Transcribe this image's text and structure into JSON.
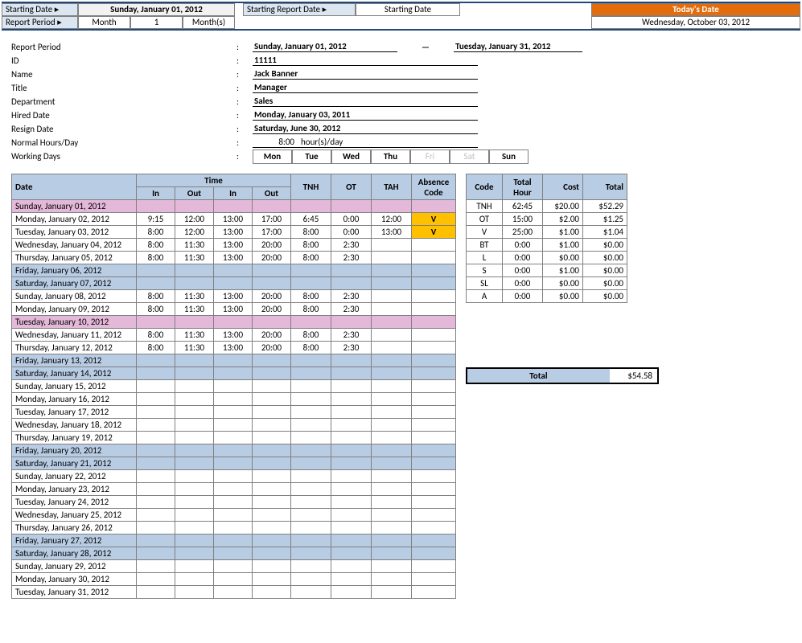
{
  "top": {
    "starting_date_label": "Starting Date ▸",
    "starting_date": "Sunday, January 01, 2012",
    "report_period_label": "Report Period ▸",
    "period_type": "Month",
    "period_count": "1",
    "period_unit": "Month(s)",
    "starting_report_label": "Starting Report Date ▸",
    "starting_report_val": "Starting Date",
    "today_label": "Today's Date",
    "today_value": "Wednesday, October 03, 2012"
  },
  "info": {
    "report_period_label": "Report Period",
    "report_period_from": "Sunday, January 01, 2012",
    "report_period_to": "Tuesday, January 31, 2012",
    "id_label": "ID",
    "id_value": "11111",
    "name_label": "Name",
    "name_value": "Jack Banner",
    "title_label": "Title",
    "title_value": "Manager",
    "dept_label": "Department",
    "dept_value": "Sales",
    "hired_label": "Hired Date",
    "hired_value": "Monday, January 03, 2011",
    "resign_label": "Resign Date",
    "resign_value": "Saturday, June 30, 2012",
    "normal_hours_label": "Normal Hours/Day",
    "normal_hours_value": "8:00",
    "normal_hours_unit": "hour(s)/day",
    "working_days_label": "Working Days",
    "days": [
      {
        "label": "Mon",
        "on": true
      },
      {
        "label": "Tue",
        "on": true
      },
      {
        "label": "Wed",
        "on": true
      },
      {
        "label": "Thu",
        "on": true
      },
      {
        "label": "Fri",
        "on": false
      },
      {
        "label": "Sat",
        "on": false
      },
      {
        "label": "Sun",
        "on": true
      }
    ]
  },
  "timesheet": {
    "headers": {
      "date": "Date",
      "time": "Time",
      "in": "In",
      "out": "Out",
      "tnh": "TNH",
      "ot": "OT",
      "tah": "TAH",
      "absence": "Absence Code"
    },
    "rows": [
      {
        "date": "Sunday, January 01, 2012",
        "type": "holiday"
      },
      {
        "date": "Monday, January 02, 2012",
        "in1": "9:15",
        "out1": "12:00",
        "in2": "13:00",
        "out2": "17:00",
        "tnh": "6:45",
        "ot": "0:00",
        "tah": "12:00",
        "abs": "V"
      },
      {
        "date": "Tuesday, January 03, 2012",
        "in1": "8:00",
        "out1": "12:00",
        "in2": "13:00",
        "out2": "17:00",
        "tnh": "8:00",
        "ot": "0:00",
        "tah": "13:00",
        "abs": "V"
      },
      {
        "date": "Wednesday, January 04, 2012",
        "in1": "8:00",
        "out1": "11:30",
        "in2": "13:00",
        "out2": "20:00",
        "tnh": "8:00",
        "ot": "2:30"
      },
      {
        "date": "Thursday, January 05, 2012",
        "in1": "8:00",
        "out1": "11:30",
        "in2": "13:00",
        "out2": "20:00",
        "tnh": "8:00",
        "ot": "2:30"
      },
      {
        "date": "Friday, January 06, 2012",
        "type": "weekend"
      },
      {
        "date": "Saturday, January 07, 2012",
        "type": "weekend"
      },
      {
        "date": "Sunday, January 08, 2012",
        "in1": "8:00",
        "out1": "11:30",
        "in2": "13:00",
        "out2": "20:00",
        "tnh": "8:00",
        "ot": "2:30"
      },
      {
        "date": "Monday, January 09, 2012",
        "in1": "8:00",
        "out1": "11:30",
        "in2": "13:00",
        "out2": "20:00",
        "tnh": "8:00",
        "ot": "2:30"
      },
      {
        "date": "Tuesday, January 10, 2012",
        "type": "holiday"
      },
      {
        "date": "Wednesday, January 11, 2012",
        "in1": "8:00",
        "out1": "11:30",
        "in2": "13:00",
        "out2": "20:00",
        "tnh": "8:00",
        "ot": "2:30"
      },
      {
        "date": "Thursday, January 12, 2012",
        "in1": "8:00",
        "out1": "11:30",
        "in2": "13:00",
        "out2": "20:00",
        "tnh": "8:00",
        "ot": "2:30"
      },
      {
        "date": "Friday, January 13, 2012",
        "type": "weekend"
      },
      {
        "date": "Saturday, January 14, 2012",
        "type": "weekend"
      },
      {
        "date": "Sunday, January 15, 2012"
      },
      {
        "date": "Monday, January 16, 2012"
      },
      {
        "date": "Tuesday, January 17, 2012"
      },
      {
        "date": "Wednesday, January 18, 2012"
      },
      {
        "date": "Thursday, January 19, 2012"
      },
      {
        "date": "Friday, January 20, 2012",
        "type": "weekend"
      },
      {
        "date": "Saturday, January 21, 2012",
        "type": "weekend"
      },
      {
        "date": "Sunday, January 22, 2012"
      },
      {
        "date": "Monday, January 23, 2012"
      },
      {
        "date": "Tuesday, January 24, 2012"
      },
      {
        "date": "Wednesday, January 25, 2012"
      },
      {
        "date": "Thursday, January 26, 2012"
      },
      {
        "date": "Friday, January 27, 2012",
        "type": "weekend"
      },
      {
        "date": "Saturday, January 28, 2012",
        "type": "weekend"
      },
      {
        "date": "Sunday, January 29, 2012"
      },
      {
        "date": "Monday, January 30, 2012"
      },
      {
        "date": "Tuesday, January 31, 2012"
      }
    ]
  },
  "summary": {
    "headers": {
      "code": "Code",
      "hour": "Total Hour",
      "cost": "Cost",
      "total": "Total"
    },
    "rows": [
      {
        "code": "TNH",
        "hour": "62:45",
        "cost": "$20.00",
        "total": "$52.29"
      },
      {
        "code": "OT",
        "hour": "15:00",
        "cost": "$2.00",
        "total": "$1.25"
      },
      {
        "code": "V",
        "hour": "25:00",
        "cost": "$1.00",
        "total": "$1.04"
      },
      {
        "code": "BT",
        "hour": "0:00",
        "cost": "$1.00",
        "total": "$0.00"
      },
      {
        "code": "L",
        "hour": "0:00",
        "cost": "$0.00",
        "total": "$0.00"
      },
      {
        "code": "S",
        "hour": "0:00",
        "cost": "$1.00",
        "total": "$0.00"
      },
      {
        "code": "SL",
        "hour": "0:00",
        "cost": "$0.00",
        "total": "$0.00"
      },
      {
        "code": "A",
        "hour": "0:00",
        "cost": "$0.00",
        "total": "$0.00"
      }
    ],
    "grand_label": "Total",
    "grand_value": "$54.58"
  },
  "colors": {
    "header_blue": "#b8cce4",
    "light_blue": "#dce6f1",
    "orange": "#e46c0a",
    "holiday": "#e4b8d9",
    "absence_highlight": "#ffc000",
    "dark_blue_border": "#1f497d"
  }
}
